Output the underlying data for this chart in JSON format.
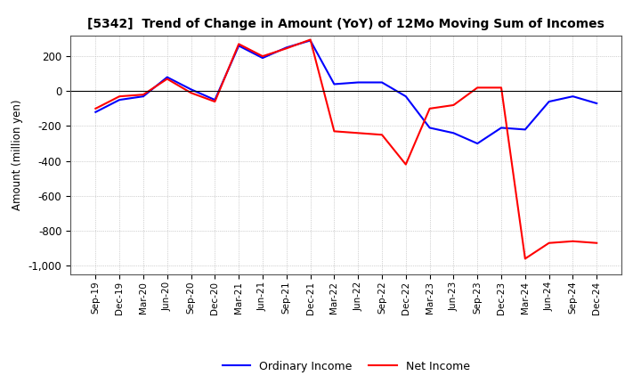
{
  "title": "[5342]  Trend of Change in Amount (YoY) of 12Mo Moving Sum of Incomes",
  "ylabel": "Amount (million yen)",
  "ylim": [
    -1050,
    320
  ],
  "yticks": [
    200,
    0,
    -200,
    -400,
    -600,
    -800,
    -1000
  ],
  "background_color": "#ffffff",
  "grid_color": "#aaaaaa",
  "ordinary_income_color": "#0000ff",
  "net_income_color": "#ff0000",
  "x_labels": [
    "Sep-19",
    "Dec-19",
    "Mar-20",
    "Jun-20",
    "Sep-20",
    "Dec-20",
    "Mar-21",
    "Jun-21",
    "Sep-21",
    "Dec-21",
    "Mar-22",
    "Jun-22",
    "Sep-22",
    "Dec-22",
    "Mar-23",
    "Jun-23",
    "Sep-23",
    "Dec-23",
    "Mar-24",
    "Jun-24",
    "Sep-24",
    "Dec-24"
  ],
  "ordinary_income": [
    -120,
    -50,
    -30,
    80,
    10,
    -50,
    260,
    190,
    250,
    290,
    40,
    50,
    50,
    -30,
    -210,
    -240,
    -300,
    -210,
    -220,
    -60,
    -30,
    -70
  ],
  "net_income": [
    -100,
    -30,
    -20,
    70,
    -10,
    -60,
    270,
    200,
    245,
    295,
    -230,
    -240,
    -250,
    -420,
    -100,
    -80,
    20,
    20,
    -960,
    -870,
    -860,
    -870
  ]
}
